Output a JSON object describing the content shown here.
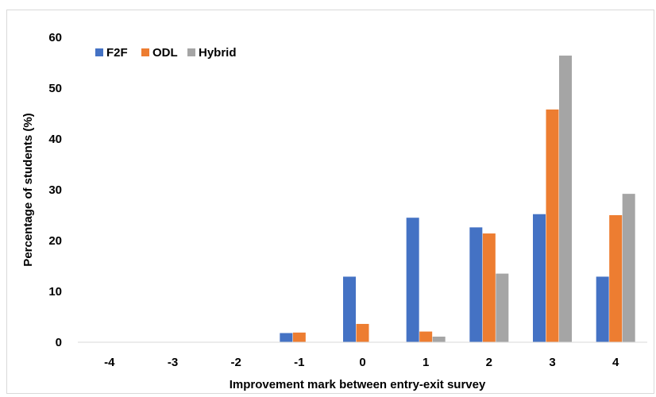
{
  "chart_data": {
    "type": "bar",
    "xlabel": "Improvement mark between entry-exit survey",
    "ylabel": "Percentage of students (%)",
    "ylim": [
      0,
      60
    ],
    "yticks": [
      0,
      10,
      20,
      30,
      40,
      50,
      60
    ],
    "categories": [
      "-4",
      "-3",
      "-2",
      "-1",
      "0",
      "1",
      "2",
      "3",
      "4"
    ],
    "legend_position": "top-left",
    "grid": false,
    "series": [
      {
        "name": "F2F",
        "color": "#4472C4",
        "values": [
          0,
          0,
          0,
          1.8,
          12.9,
          24.5,
          22.6,
          25.2,
          12.9
        ]
      },
      {
        "name": "ODL",
        "color": "#ED7D31",
        "values": [
          0,
          0,
          0,
          1.9,
          3.6,
          2.1,
          21.4,
          45.8,
          25.0
        ]
      },
      {
        "name": "Hybrid",
        "color": "#A5A5A5",
        "values": [
          0,
          0,
          0,
          0,
          0,
          1.1,
          13.5,
          56.4,
          29.2
        ]
      }
    ]
  }
}
